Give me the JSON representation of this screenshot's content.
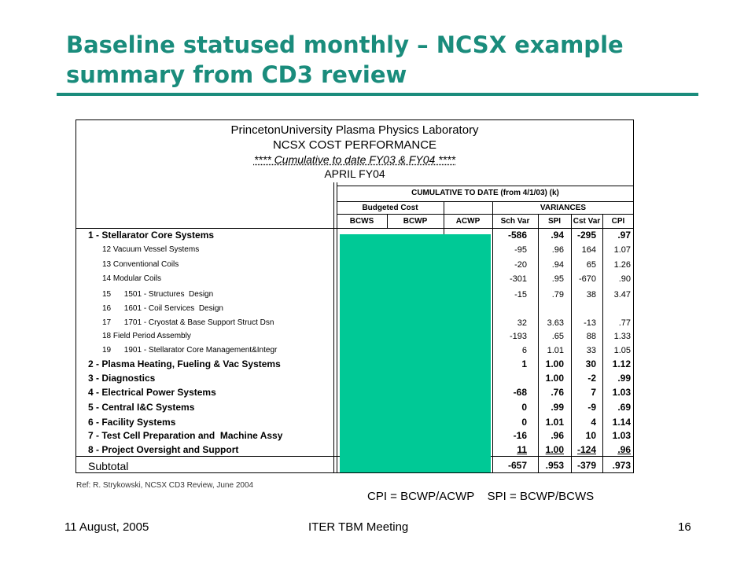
{
  "slide": {
    "title_line1": "Baseline statused monthly – NCSX example",
    "title_line2": "summary from CD3 review",
    "colors": {
      "title": "#1a8c7c",
      "mask": "#00c996"
    }
  },
  "report": {
    "org": "PrincetonUniversity Plasma Physics Laboratory",
    "name": "NCSX COST PERFORMANCE",
    "period_note": "**** Cumulative to date FY03 & FY04 ****",
    "month": "APRIL FY04",
    "group_header": "CUMULATIVE TO DATE (from 4/1/03) (k)",
    "budgeted_cost": "Budgeted Cost",
    "variances": "VARIANCES",
    "columns": [
      "BCWS",
      "BCWP",
      "ACWP",
      "Sch Var",
      "SPI",
      "Cst Var",
      "CPI"
    ]
  },
  "rows": [
    {
      "label": "1 - Stellarator Core Systems",
      "level": 1,
      "sch_var": "-586",
      "spi": ".94",
      "cst_var": "-295",
      "cpi": ".97"
    },
    {
      "label": "12 Vacuum Vessel Systems",
      "level": 2,
      "sch_var": "-95",
      "spi": ".96",
      "cst_var": "164",
      "cpi": "1.07"
    },
    {
      "label": "13 Conventional Coils",
      "level": 2,
      "sch_var": "-20",
      "spi": ".94",
      "cst_var": "65",
      "cpi": "1.26"
    },
    {
      "label": "14 Modular Coils",
      "level": 2,
      "sch_var": "-301",
      "spi": ".95",
      "cst_var": "-670",
      "cpi": ".90"
    },
    {
      "label": "15      1501 - Structures  Design",
      "level": 2,
      "sch_var": "-15",
      "spi": ".79",
      "cst_var": "38",
      "cpi": "3.47"
    },
    {
      "label": "16      1601 - Coil Services  Design",
      "level": 2,
      "sch_var": "",
      "spi": "",
      "cst_var": "",
      "cpi": ""
    },
    {
      "label": "17      1701 - Cryostat & Base Support Struct Dsn",
      "level": 2,
      "sch_var": "32",
      "spi": "3.63",
      "cst_var": "-13",
      "cpi": ".77"
    },
    {
      "label": "18 Field Period Assembly",
      "level": 2,
      "sch_var": "-193",
      "spi": ".65",
      "cst_var": "88",
      "cpi": "1.33"
    },
    {
      "label": "19      1901 - Stellarator Core Management&Integr",
      "level": 2,
      "sch_var": "6",
      "spi": "1.01",
      "cst_var": "33",
      "cpi": "1.05"
    },
    {
      "label": "2 - Plasma Heating, Fueling & Vac Systems",
      "level": 1,
      "sch_var": "1",
      "spi": "1.00",
      "cst_var": "30",
      "cpi": "1.12"
    },
    {
      "label": "3 - Diagnostics",
      "level": 1,
      "sch_var": "",
      "spi": "1.00",
      "cst_var": "-2",
      "cpi": ".99"
    },
    {
      "label": "4 - Electrical Power Systems",
      "level": 1,
      "sch_var": "-68",
      "spi": ".76",
      "cst_var": "7",
      "cpi": "1.03"
    },
    {
      "label": "5 - Central I&C Systems",
      "level": 1,
      "sch_var": "0",
      "spi": ".99",
      "cst_var": "-9",
      "cpi": ".69"
    },
    {
      "label": "6 - Facility Systems",
      "level": 1,
      "sch_var": "0",
      "spi": "1.01",
      "cst_var": "4",
      "cpi": "1.14"
    },
    {
      "label": "7 - Test Cell Preparation and  Machine Assy",
      "level": 1,
      "sch_var": "-16",
      "spi": ".96",
      "cst_var": "10",
      "cpi": "1.03"
    },
    {
      "label": "8 - Project Oversight and Support",
      "level": 1,
      "sch_var": "11",
      "spi": "1.00",
      "cst_var": "-124",
      "cpi": ".96"
    }
  ],
  "subtotal": {
    "label": "Subtotal",
    "sch_var": "-657",
    "spi": ".953",
    "cst_var": "-379",
    "cpi": ".973"
  },
  "reference": "Ref: R. Strykowski, NCSX CD3 Review, June 2004",
  "formula": "CPI = BCWP/ACWP    SPI = BCWP/BCWS",
  "footer": {
    "date": "11 August, 2005",
    "meeting": "ITER TBM Meeting",
    "page": "16"
  }
}
